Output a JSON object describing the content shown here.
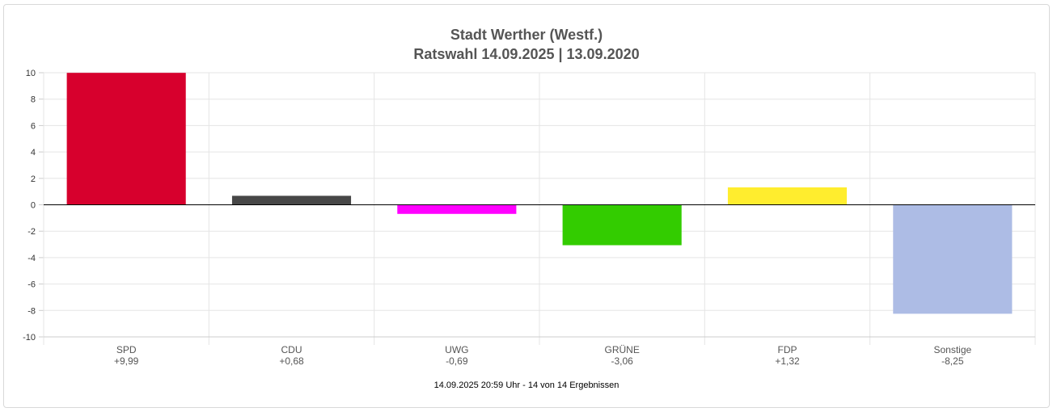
{
  "chart_data": {
    "type": "bar",
    "title": "Stadt Werther (Westf.)",
    "subtitle": "Ratswahl 14.09.2025  | 13.09.2020",
    "categories": [
      "SPD",
      "CDU",
      "UWG",
      "GRÜNE",
      "FDP",
      "Sonstige"
    ],
    "values": [
      9.99,
      0.68,
      -0.69,
      -3.06,
      1.32,
      -8.25
    ],
    "value_labels": [
      "+9,99",
      "+0,68",
      "-0,69",
      "-3,06",
      "+1,32",
      "-8,25"
    ],
    "colors": [
      "#d7002d",
      "#474747",
      "#ff00ff",
      "#33cc00",
      "#ffed2e",
      "#adbce5"
    ],
    "ylim": [
      -10,
      10
    ],
    "yticks": [
      10,
      8,
      6,
      4,
      2,
      0,
      -2,
      -4,
      -6,
      -8,
      -10
    ],
    "grid": true,
    "footer": "14.09.2025 20:59 Uhr - 14 von 14 Ergebnissen"
  }
}
